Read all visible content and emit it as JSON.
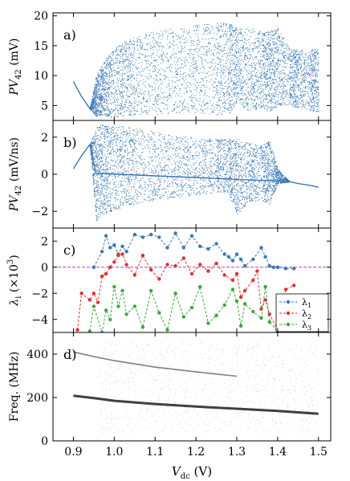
{
  "figure": {
    "xlabel": "V",
    "xlabel_sub": "dc",
    "xlabel_unit": " (V)",
    "xlim": [
      0.85,
      1.53
    ],
    "xticks": [
      "0.9",
      "1.0",
      "1.1",
      "1.2",
      "1.3",
      "1.4",
      "1.5"
    ]
  },
  "colors": {
    "blue": "#3a78b5",
    "red": "#e03030",
    "green": "#3aa83a",
    "zero_line": "#b040c0"
  },
  "chart_data": [
    {
      "panel": "a)",
      "type": "scatter",
      "ylabel_main": "PV",
      "ylabel_sub": "42",
      "ylabel_unit": " (mV)",
      "ylim": [
        2.5,
        20.5
      ],
      "yticks": [
        "5",
        "10",
        "15",
        "20"
      ],
      "series": [
        {
          "x": [
            0.9,
            0.92,
            0.94,
            0.955,
            0.97,
            0.99,
            1.02,
            1.05,
            1.1,
            1.15,
            1.2,
            1.25,
            1.28,
            1.3,
            1.33,
            1.36,
            1.38,
            1.4,
            1.43,
            1.45,
            1.48,
            1.5
          ],
          "y_min": [
            9.0,
            6.5,
            4.5,
            3.2,
            3.5,
            3.0,
            3.2,
            3.5,
            3.5,
            3.8,
            3.8,
            3.5,
            3.5,
            5.5,
            4.0,
            4.5,
            4.0,
            5.0,
            5.0,
            4.6,
            4.2,
            4.0
          ],
          "y_max": [
            9.0,
            6.5,
            4.5,
            10.0,
            12.0,
            14.0,
            15.5,
            16.5,
            17.5,
            18.0,
            18.5,
            18.8,
            19.0,
            18.0,
            18.0,
            17.5,
            17.5,
            18.0,
            14.5,
            14.5,
            14.5,
            14.5
          ]
        }
      ]
    },
    {
      "panel": "b)",
      "type": "scatter",
      "ylabel_main": "PV",
      "ylabel_sub": "42",
      "ylabel_unit": " (mV/ns)",
      "ylim": [
        -2.9,
        2.9
      ],
      "yticks": [
        "−2",
        "0",
        "2"
      ],
      "series": [
        {
          "x": [
            0.9,
            0.92,
            0.94,
            0.955,
            0.97,
            0.99,
            1.02,
            1.05,
            1.1,
            1.15,
            1.2,
            1.25,
            1.28,
            1.3,
            1.33,
            1.36,
            1.38,
            1.4,
            1.43,
            1.45,
            1.48,
            1.5
          ],
          "y_min": [
            0.3,
            1.0,
            1.6,
            -2.5,
            -2.2,
            -2.0,
            -1.8,
            -1.6,
            -1.4,
            -1.3,
            -1.1,
            -1.0,
            -1.0,
            -2.2,
            -1.5,
            -1.4,
            -1.6,
            -0.5,
            -0.4,
            -0.5,
            -0.6,
            -0.7
          ],
          "y_max": [
            0.3,
            1.0,
            1.6,
            2.6,
            2.7,
            2.6,
            2.6,
            2.5,
            2.3,
            2.1,
            2.0,
            1.9,
            1.9,
            2.0,
            1.7,
            1.6,
            1.8,
            0.3,
            -0.4,
            -0.5,
            -0.6,
            -0.7
          ]
        }
      ]
    },
    {
      "panel": "c)",
      "type": "line",
      "ylabel_main": "λ",
      "ylabel_sub": "i",
      "ylabel_unit": " (×10",
      "ylabel_sup": "3",
      "ylabel_close": ")",
      "ylim": [
        -5.0,
        3.0
      ],
      "yticks": [
        "−4",
        "−2",
        "0",
        "2"
      ],
      "legend_position": "bottom-right",
      "series": [
        {
          "name": "λ",
          "name_sub": "1",
          "x": [
            0.95,
            0.97,
            0.98,
            0.99,
            1.0,
            1.01,
            1.02,
            1.03,
            1.05,
            1.07,
            1.09,
            1.11,
            1.13,
            1.15,
            1.17,
            1.19,
            1.21,
            1.23,
            1.25,
            1.27,
            1.28,
            1.29,
            1.3,
            1.31,
            1.32,
            1.34,
            1.36,
            1.37,
            1.38,
            1.39,
            1.4,
            1.42,
            1.44
          ],
          "y": [
            0.0,
            1.2,
            2.4,
            1.5,
            1.7,
            1.0,
            1.6,
            1.2,
            2.5,
            2.3,
            2.5,
            2.3,
            1.5,
            2.6,
            1.5,
            2.4,
            1.6,
            1.4,
            1.8,
            1.0,
            0.8,
            0.5,
            1.0,
            0.6,
            0.1,
            0.6,
            1.5,
            0.8,
            0.1,
            0.0,
            0.0,
            -0.1,
            -0.1
          ]
        },
        {
          "name": "λ",
          "name_sub": "2",
          "x": [
            0.91,
            0.92,
            0.94,
            0.95,
            0.96,
            0.97,
            0.98,
            0.99,
            1.0,
            1.01,
            1.02,
            1.03,
            1.05,
            1.07,
            1.09,
            1.11,
            1.13,
            1.15,
            1.17,
            1.19,
            1.21,
            1.23,
            1.25,
            1.27,
            1.29,
            1.3,
            1.31,
            1.32,
            1.34,
            1.35,
            1.36,
            1.37,
            1.38,
            1.4,
            1.42,
            1.44
          ],
          "y": [
            -4.8,
            -2.0,
            -2.5,
            -2.0,
            -2.7,
            -0.7,
            -0.5,
            0.0,
            0.4,
            0.9,
            1.0,
            0.2,
            -0.6,
            0.9,
            -0.2,
            -0.9,
            0.2,
            0.1,
            0.7,
            -0.5,
            0.2,
            -0.3,
            0.3,
            -0.6,
            -1.0,
            -0.5,
            -2.3,
            -1.8,
            -1.0,
            -0.3,
            -3.2,
            -2.5,
            -3.6,
            -4.8,
            -1.7,
            -1.4
          ]
        },
        {
          "name": "λ",
          "name_sub": "3",
          "x": [
            0.94,
            0.95,
            0.97,
            0.98,
            0.99,
            1.0,
            1.01,
            1.02,
            1.03,
            1.05,
            1.07,
            1.09,
            1.11,
            1.13,
            1.15,
            1.17,
            1.19,
            1.21,
            1.23,
            1.25,
            1.27,
            1.29,
            1.3,
            1.31,
            1.32,
            1.34,
            1.36,
            1.37,
            1.38,
            1.4
          ],
          "y": [
            -4.9,
            -3.0,
            -5.0,
            -3.3,
            -4.0,
            -1.5,
            -3.0,
            -1.8,
            -3.6,
            -3.0,
            -4.6,
            -1.8,
            -3.5,
            -4.8,
            -2.0,
            -3.8,
            -3.1,
            -1.5,
            -4.3,
            -3.7,
            -2.9,
            -1.7,
            -2.6,
            -4.5,
            -2.8,
            -3.4,
            -3.9,
            -1.5,
            -4.2,
            -4.9
          ]
        }
      ]
    },
    {
      "panel": "d)",
      "type": "heatmap",
      "ylabel_main": "Freq. (MHz)",
      "ylim": [
        0,
        500
      ],
      "yticks": [
        "0",
        "200",
        "400"
      ],
      "series": [
        {
          "name": "",
          "x": [
            0.9,
            0.96,
            1.0,
            1.1,
            1.2,
            1.3,
            1.4,
            1.5
          ],
          "y": [
            208,
            195,
            185,
            170,
            158,
            148,
            138,
            125
          ]
        },
        {
          "name": "",
          "x": [
            0.9,
            0.96,
            1.0,
            1.1,
            1.2,
            1.3
          ],
          "y": [
            410,
            385,
            370,
            340,
            318,
            298
          ]
        }
      ]
    }
  ]
}
